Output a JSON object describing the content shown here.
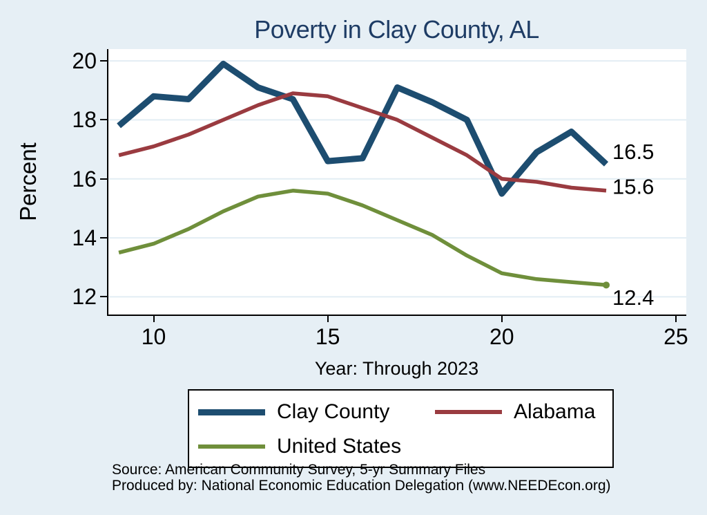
{
  "title": "Poverty in Clay County, AL",
  "y_axis": {
    "label": "Percent"
  },
  "x_axis": {
    "label": "Year: Through 2023"
  },
  "source_lines": [
    "Source: American Community Survey, 5-yr Summary Files",
    "Produced by: National Economic Education Delegation (www.NEEDEcon.org)"
  ],
  "legend": {
    "items": [
      "Clay County",
      "Alabama",
      "United States"
    ]
  },
  "chart_data": {
    "type": "line",
    "title": "Poverty in Clay County, AL",
    "xlabel": "Year: Through 2023",
    "ylabel": "Percent",
    "x": [
      9,
      10,
      11,
      12,
      13,
      14,
      15,
      16,
      17,
      18,
      19,
      20,
      21,
      22,
      23
    ],
    "x_ticks": [
      10,
      15,
      20,
      25
    ],
    "y_ticks": [
      20,
      18,
      16,
      14,
      12
    ],
    "xlim": [
      8.7,
      25.3
    ],
    "ylim": [
      11.4,
      20.4
    ],
    "grid": "horizontal",
    "legend_position": "bottom",
    "background_color": "#e6eff5",
    "plot_background_color": "#ffffff",
    "gridline_color": "#e2edf4",
    "series": [
      {
        "name": "Clay County",
        "color": "#1d4d70",
        "line_width": 9,
        "values": [
          17.8,
          18.8,
          18.7,
          19.9,
          19.1,
          18.7,
          16.6,
          16.7,
          19.1,
          18.6,
          18.0,
          15.5,
          16.9,
          17.6,
          16.5
        ],
        "end_label": "16.5"
      },
      {
        "name": "Alabama",
        "color": "#9a3b40",
        "line_width": 5.5,
        "values": [
          16.8,
          17.1,
          17.5,
          18.0,
          18.5,
          18.9,
          18.8,
          18.4,
          18.0,
          17.4,
          16.8,
          16.0,
          15.9,
          15.7,
          15.6
        ],
        "end_label": "15.6"
      },
      {
        "name": "United States",
        "color": "#6f8f3b",
        "line_width": 5.5,
        "values": [
          13.5,
          13.8,
          14.3,
          14.9,
          15.4,
          15.6,
          15.5,
          15.1,
          14.6,
          14.1,
          13.4,
          12.8,
          12.6,
          12.5,
          12.4
        ],
        "end_label": "12.4",
        "end_dot": true
      }
    ]
  }
}
